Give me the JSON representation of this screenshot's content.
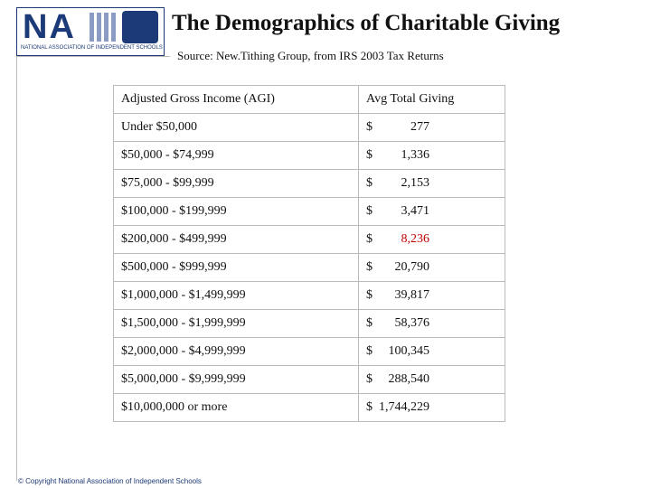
{
  "logo": {
    "letters": "NA",
    "tagline": "NATIONAL ASSOCIATION OF INDEPENDENT SCHOOLS"
  },
  "header": {
    "title": "The Demographics of Charitable Giving",
    "subtitle": "Source: New.Tithing Group, from IRS 2003 Tax Returns"
  },
  "table": {
    "columns": [
      "Adjusted Gross Income (AGI)",
      "Avg Total Giving"
    ],
    "rows": [
      [
        "Under $50,000",
        "$",
        "277"
      ],
      [
        "$50,000 - $74,999",
        "$",
        "1,336"
      ],
      [
        "$75,000 - $99,999",
        "$",
        "2,153"
      ],
      [
        "$100,000 - $199,999",
        "$",
        "3,471"
      ],
      [
        "$200,000 - $499,999",
        "$",
        "8,236"
      ],
      [
        "$500,000 - $999,999",
        "$",
        "20,790"
      ],
      [
        "$1,000,000 - $1,499,999",
        "$",
        "39,817"
      ],
      [
        "$1,500,000 - $1,999,999",
        "$",
        "58,376"
      ],
      [
        "$2,000,000 - $4,999,999",
        "$",
        "100,345"
      ],
      [
        "$5,000,000 - $9,999,999",
        "$",
        "288,540"
      ],
      [
        "$10,000,000 or more",
        "$",
        "1,744,229"
      ]
    ]
  },
  "footer": {
    "copyright": "© Copyright National Association of Independent Schools"
  }
}
